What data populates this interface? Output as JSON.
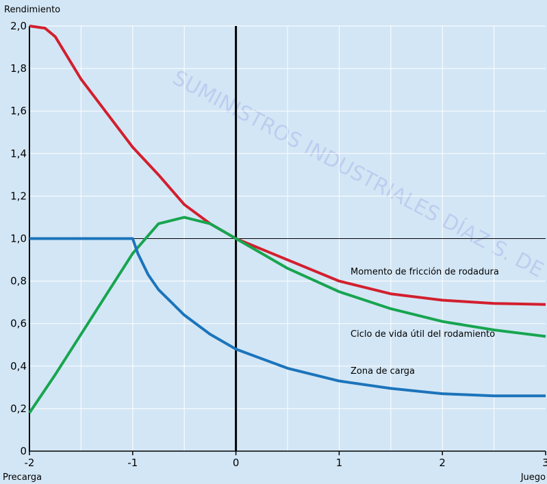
{
  "chart_data": {
    "type": "line",
    "watermark": "SUMINISTROS INDUSTRIALES DÍAZ S. DE R.L. DE C.V.",
    "y_label": "Rendimiento",
    "x_label_left": "Precarga",
    "x_label_right": "Juego",
    "xlim": [
      -2,
      3
    ],
    "ylim": [
      0,
      2
    ],
    "xticks": [
      -2,
      -1,
      0,
      1,
      2,
      3
    ],
    "x_grid": [
      -1.5,
      -1,
      -0.5,
      0.5,
      1,
      1.5,
      2,
      2.5
    ],
    "yticks": [
      0,
      {
        "value": 0.2,
        "label": "0,2"
      },
      {
        "value": 0.4,
        "label": "0,4"
      },
      {
        "value": 0.6,
        "label": "0,6"
      },
      {
        "value": 0.8,
        "label": "0,8"
      },
      {
        "value": 1,
        "label": "1,0"
      },
      {
        "value": 1.2,
        "label": "1,2"
      },
      {
        "value": 1.4,
        "label": "1,4"
      },
      {
        "value": 1.6,
        "label": "1,6"
      },
      {
        "value": 1.8,
        "label": "1,8"
      },
      {
        "value": 2,
        "label": "2,0"
      }
    ],
    "grid": true,
    "series": [
      {
        "name": "Momento de fricción de rodadura",
        "color": "#d21f2e",
        "x": [
          -2,
          -1.85,
          -1.75,
          -1.5,
          -1.25,
          -1,
          -0.75,
          -0.5,
          -0.25,
          0,
          0.5,
          1,
          1.5,
          2,
          2.5,
          3
        ],
        "values": [
          2.0,
          1.99,
          1.95,
          1.75,
          1.59,
          1.43,
          1.3,
          1.16,
          1.07,
          1.0,
          0.9,
          0.8,
          0.74,
          0.71,
          0.695,
          0.69
        ]
      },
      {
        "name": "Ciclo de vida útil del rodamiento",
        "color": "#17a550",
        "x": [
          -2,
          -1.75,
          -1.5,
          -1.25,
          -1,
          -0.75,
          -0.5,
          -0.25,
          0,
          0.5,
          1,
          1.5,
          2,
          2.5,
          3
        ],
        "values": [
          0.18,
          0.36,
          0.55,
          0.74,
          0.93,
          1.07,
          1.1,
          1.07,
          1.0,
          0.86,
          0.75,
          0.67,
          0.61,
          0.57,
          0.54
        ]
      },
      {
        "name": "Zona de carga",
        "color": "#1b74bb",
        "x": [
          -2,
          -1,
          -0.95,
          -0.85,
          -0.75,
          -0.5,
          -0.25,
          0,
          0.5,
          1,
          1.5,
          2,
          2.5,
          3
        ],
        "values": [
          1.0,
          1.0,
          0.93,
          0.83,
          0.76,
          0.64,
          0.55,
          0.48,
          0.39,
          0.33,
          0.295,
          0.27,
          0.26,
          0.26
        ]
      }
    ]
  }
}
